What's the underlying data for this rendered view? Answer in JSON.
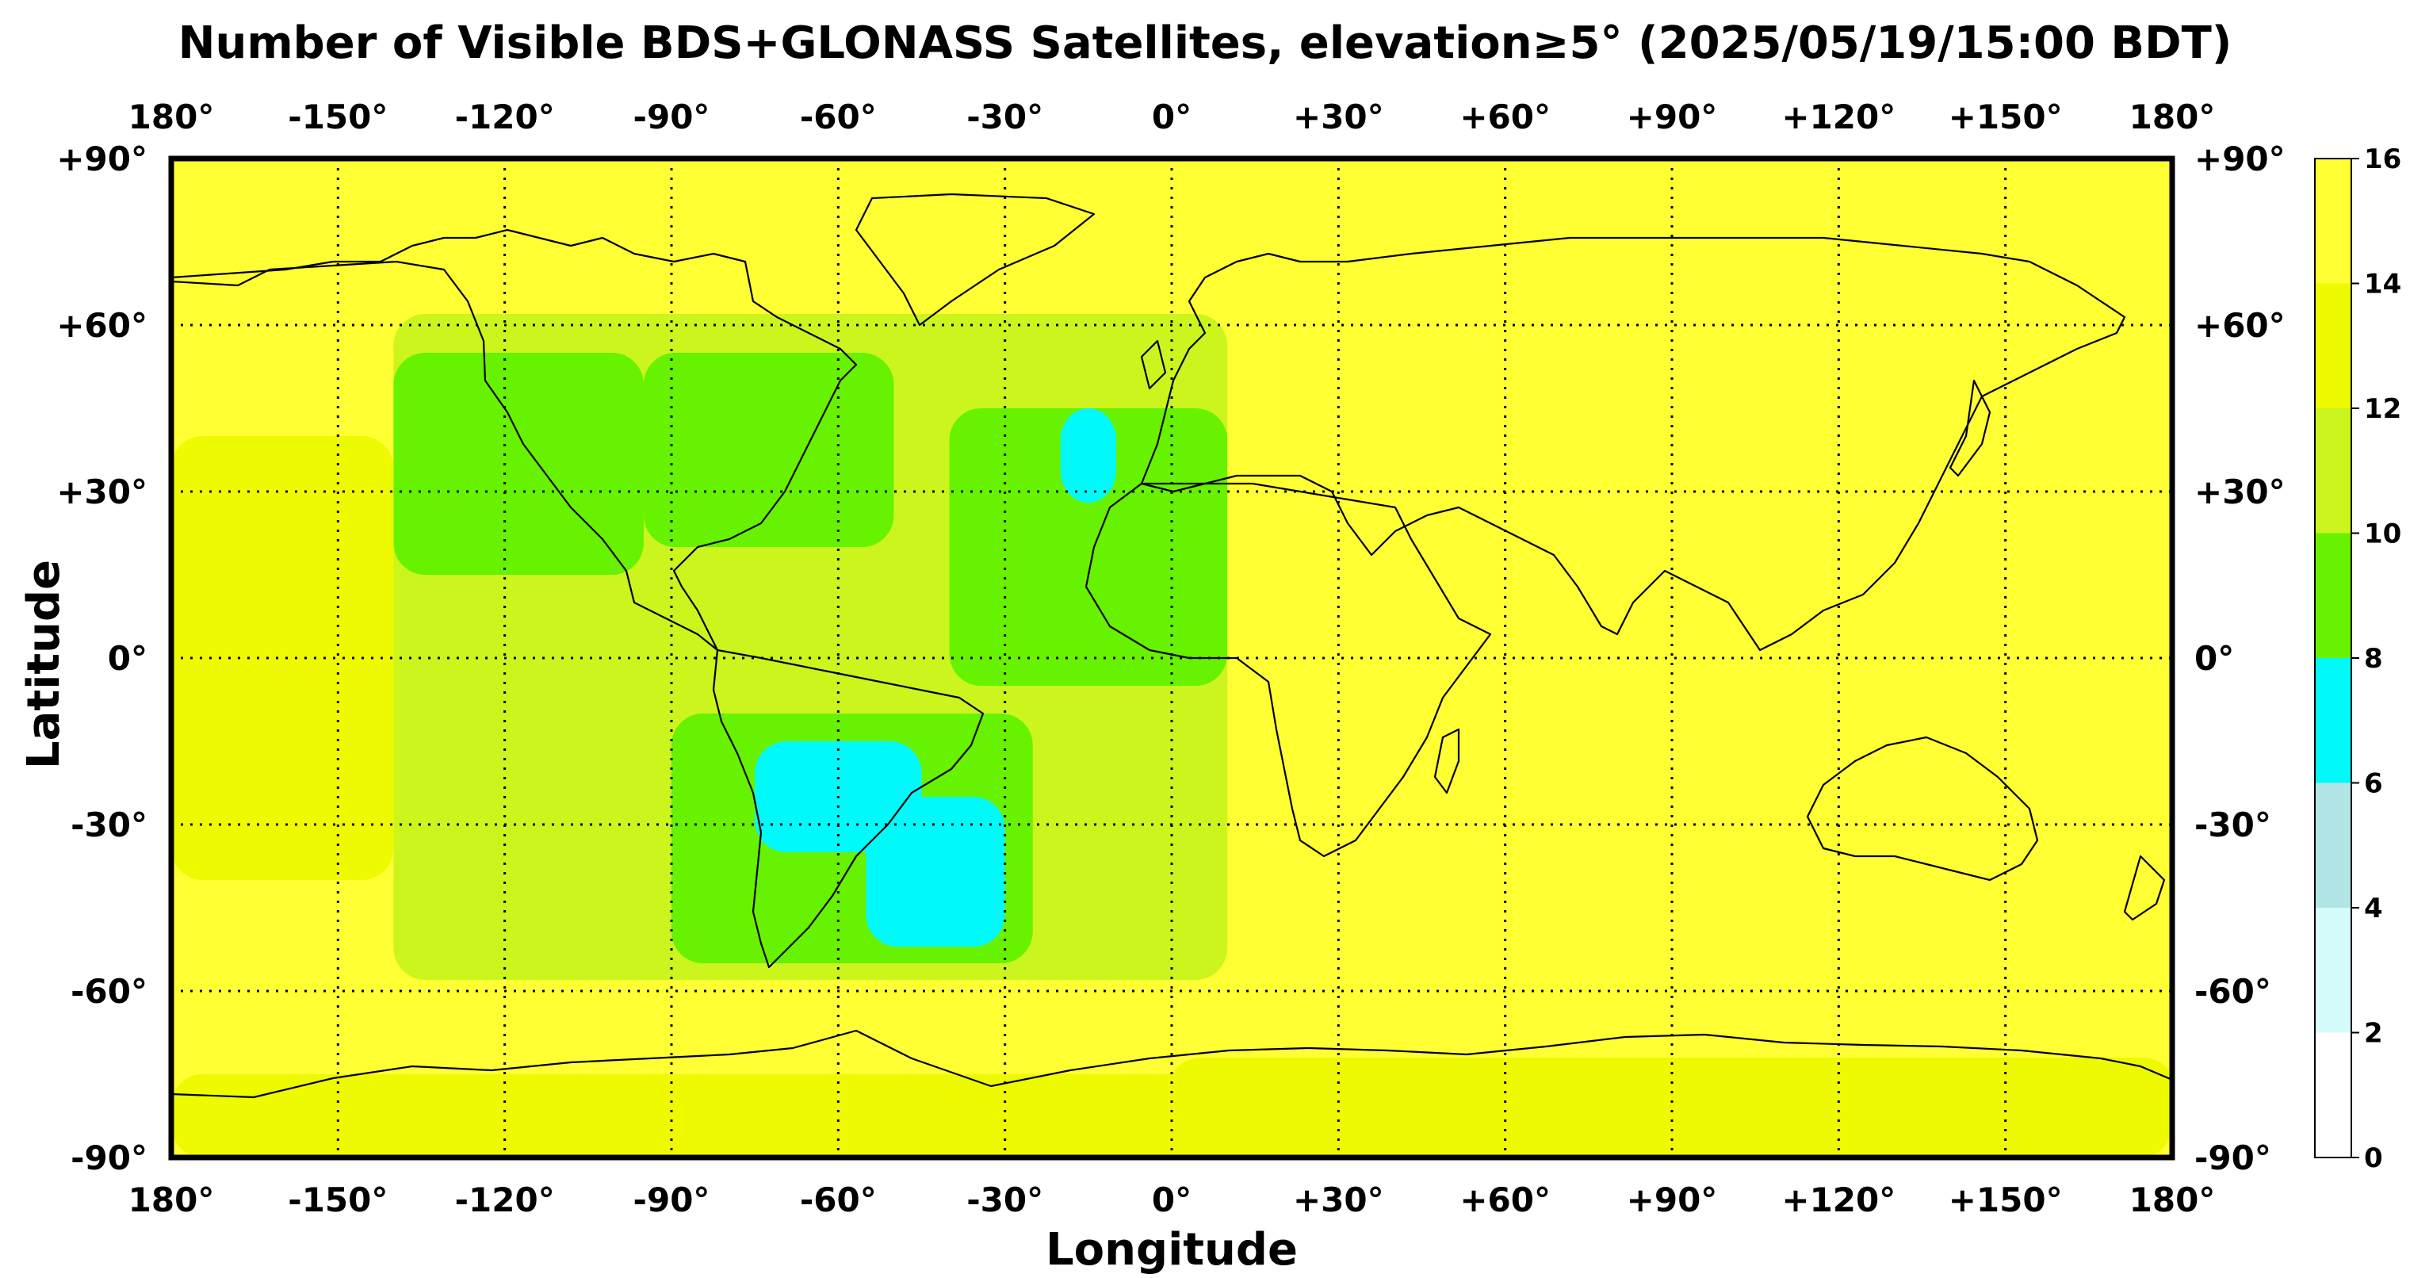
{
  "title": "Number of Visible BDS+GLONASS Satellites, elevation≥5° (2025/05/19/15:00 BDT)",
  "xlabel": "Longitude",
  "ylabel": "Latitude",
  "lon_ticks": [
    "180°",
    "-150°",
    "-120°",
    "-90°",
    "-60°",
    "-30°",
    "0°",
    "+30°",
    "+60°",
    "+90°",
    "+120°",
    "+150°",
    "180°"
  ],
  "lat_ticks": [
    "+90°",
    "+60°",
    "+30°",
    "0°",
    "-30°",
    "-60°",
    "-90°"
  ],
  "colorbar": {
    "ticks": [
      "0",
      "2",
      "4",
      "6",
      "8",
      "10",
      "12",
      "14",
      "16"
    ],
    "colors": [
      "#ffffff",
      "#d6fbfb",
      "#b2e6e6",
      "#00fafa",
      "#66f200",
      "#cbf51c",
      "#eefa00",
      "#ffff33"
    ]
  },
  "chart_data": {
    "type": "heatmap",
    "title": "Number of Visible BDS+GLONASS Satellites, elevation≥5° (2025/05/19/15:00 BDT)",
    "xlabel": "Longitude",
    "ylabel": "Latitude",
    "xlim": [
      -180,
      180
    ],
    "ylim": [
      -90,
      90
    ],
    "grid": true,
    "colorbar_range": [
      0,
      16
    ],
    "colorbar_levels": [
      0,
      2,
      4,
      6,
      8,
      10,
      12,
      14,
      16
    ],
    "background_value": 15,
    "regions": [
      {
        "value": 13,
        "lon": [
          -180,
          180
        ],
        "lat": [
          -90,
          -75
        ]
      },
      {
        "value": 13,
        "lon": [
          0,
          180
        ],
        "lat": [
          -80,
          -72
        ]
      },
      {
        "value": 11,
        "lon": [
          -140,
          10
        ],
        "lat": [
          -58,
          62
        ]
      },
      {
        "value": 13,
        "lon": [
          -180,
          -140
        ],
        "lat": [
          -40,
          40
        ]
      },
      {
        "value": 9,
        "lon": [
          -140,
          -95
        ],
        "lat": [
          15,
          55
        ]
      },
      {
        "value": 9,
        "lon": [
          -95,
          -50
        ],
        "lat": [
          20,
          55
        ]
      },
      {
        "value": 9,
        "lon": [
          -40,
          10
        ],
        "lat": [
          -5,
          45
        ]
      },
      {
        "value": 9,
        "lon": [
          -90,
          -25
        ],
        "lat": [
          -55,
          -10
        ]
      },
      {
        "value": 7,
        "lon": [
          -75,
          -45
        ],
        "lat": [
          -35,
          -15
        ]
      },
      {
        "value": 7,
        "lon": [
          -55,
          -30
        ],
        "lat": [
          -52,
          -25
        ]
      },
      {
        "value": 7,
        "lon": [
          -20,
          -10
        ],
        "lat": [
          28,
          45
        ]
      }
    ]
  }
}
